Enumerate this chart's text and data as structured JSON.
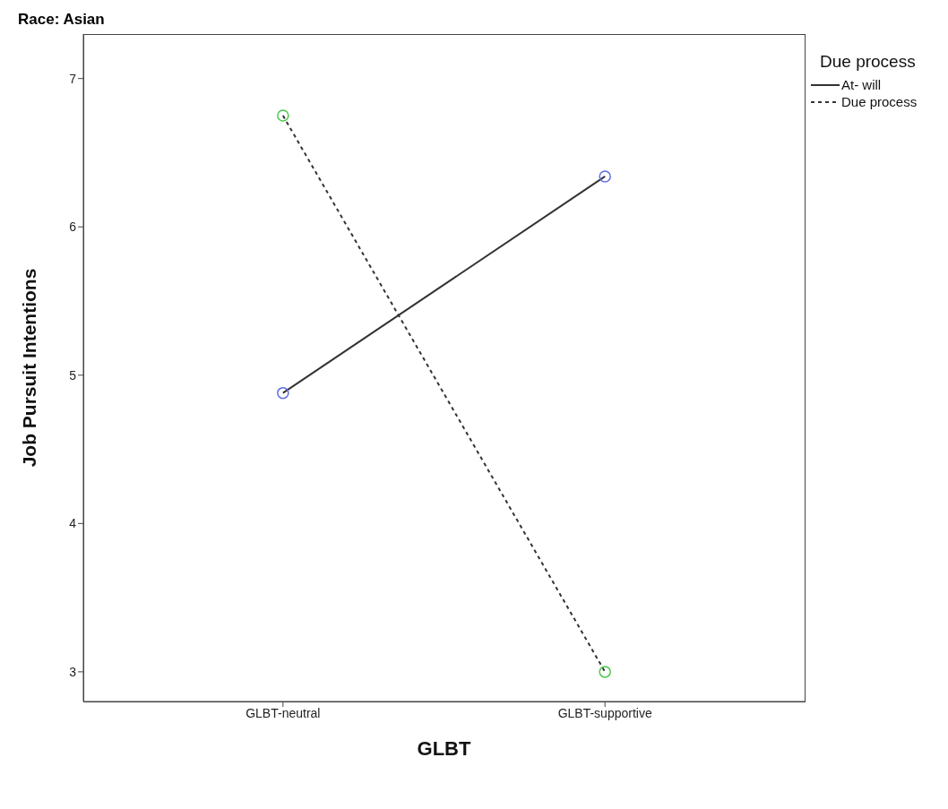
{
  "chart_data": {
    "type": "line",
    "title": "Race: Asian",
    "xlabel": "GLBT",
    "ylabel": "Job Pursuit Intentions",
    "legend_title": "Due process",
    "categories": [
      "GLBT-neutral",
      "GLBT-supportive"
    ],
    "series": [
      {
        "name": "At- will",
        "color": "#333333",
        "colors": [
          "#5a6ee0",
          "#5a6ee0"
        ],
        "line_style": "solid",
        "values": [
          4.88,
          6.34
        ]
      },
      {
        "name": "Due process",
        "color": "#333333",
        "colors": [
          "#4cc84c",
          "#4cc84c"
        ],
        "line_style": "dashed",
        "values": [
          6.75,
          3.0
        ]
      }
    ],
    "ylim": [
      2.8,
      7.3
    ],
    "yticks": [
      3,
      4,
      5,
      6,
      7
    ],
    "grid": false,
    "legend": "top right",
    "marker": "circle"
  }
}
